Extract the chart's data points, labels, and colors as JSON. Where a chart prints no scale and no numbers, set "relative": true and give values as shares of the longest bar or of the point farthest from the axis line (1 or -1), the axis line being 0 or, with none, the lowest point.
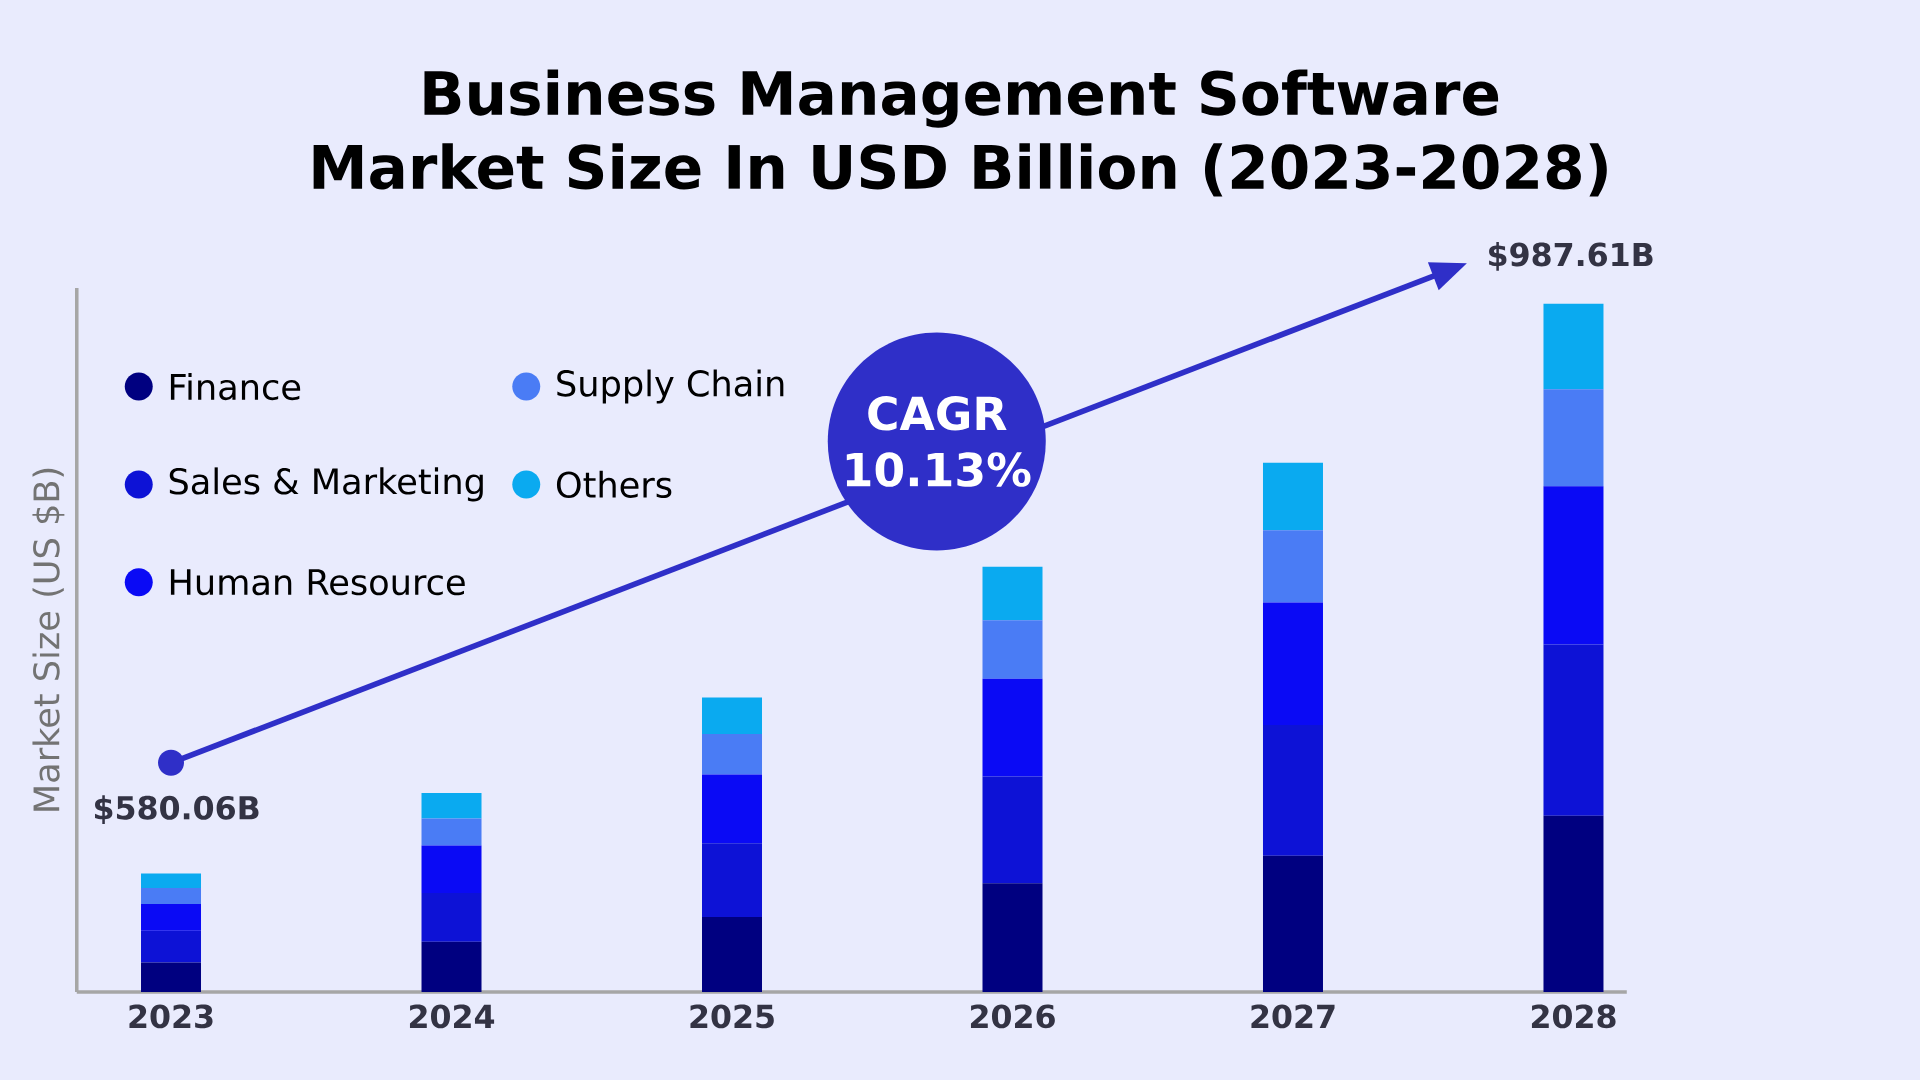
{
  "chart_data": {
    "type": "bar",
    "title": "Business Management Software Market Size In USD Billion (2023-2028)",
    "ylabel": "Market Size (US $B)",
    "categories": [
      "2023",
      "2024",
      "2025",
      "2026",
      "2027",
      "2028"
    ],
    "stacked": true,
    "relative": true,
    "legend": "top left",
    "tick_labels": "x",
    "series": [
      {
        "name": "Finance",
        "color": "#000080",
        "values": [
          0.043,
          0.073,
          0.109,
          0.158,
          0.198,
          0.256
        ]
      },
      {
        "name": "Sales & Marketing",
        "color": "#0d12d6",
        "values": [
          0.046,
          0.071,
          0.107,
          0.155,
          0.19,
          0.249
        ]
      },
      {
        "name": "Human Resource",
        "color": "#0a0af5",
        "values": [
          0.039,
          0.069,
          0.1,
          0.142,
          0.178,
          0.23
        ]
      },
      {
        "name": "Supply Chain",
        "color": "#4a7cf5",
        "values": [
          0.023,
          0.039,
          0.059,
          0.085,
          0.105,
          0.141
        ]
      },
      {
        "name": "Others",
        "color": "#0aaaf0",
        "values": [
          0.021,
          0.037,
          0.053,
          0.078,
          0.098,
          0.124
        ]
      }
    ],
    "annotations": [
      "$580.06B",
      "$987.61B",
      "CAGR 10.13%"
    ]
  }
}
